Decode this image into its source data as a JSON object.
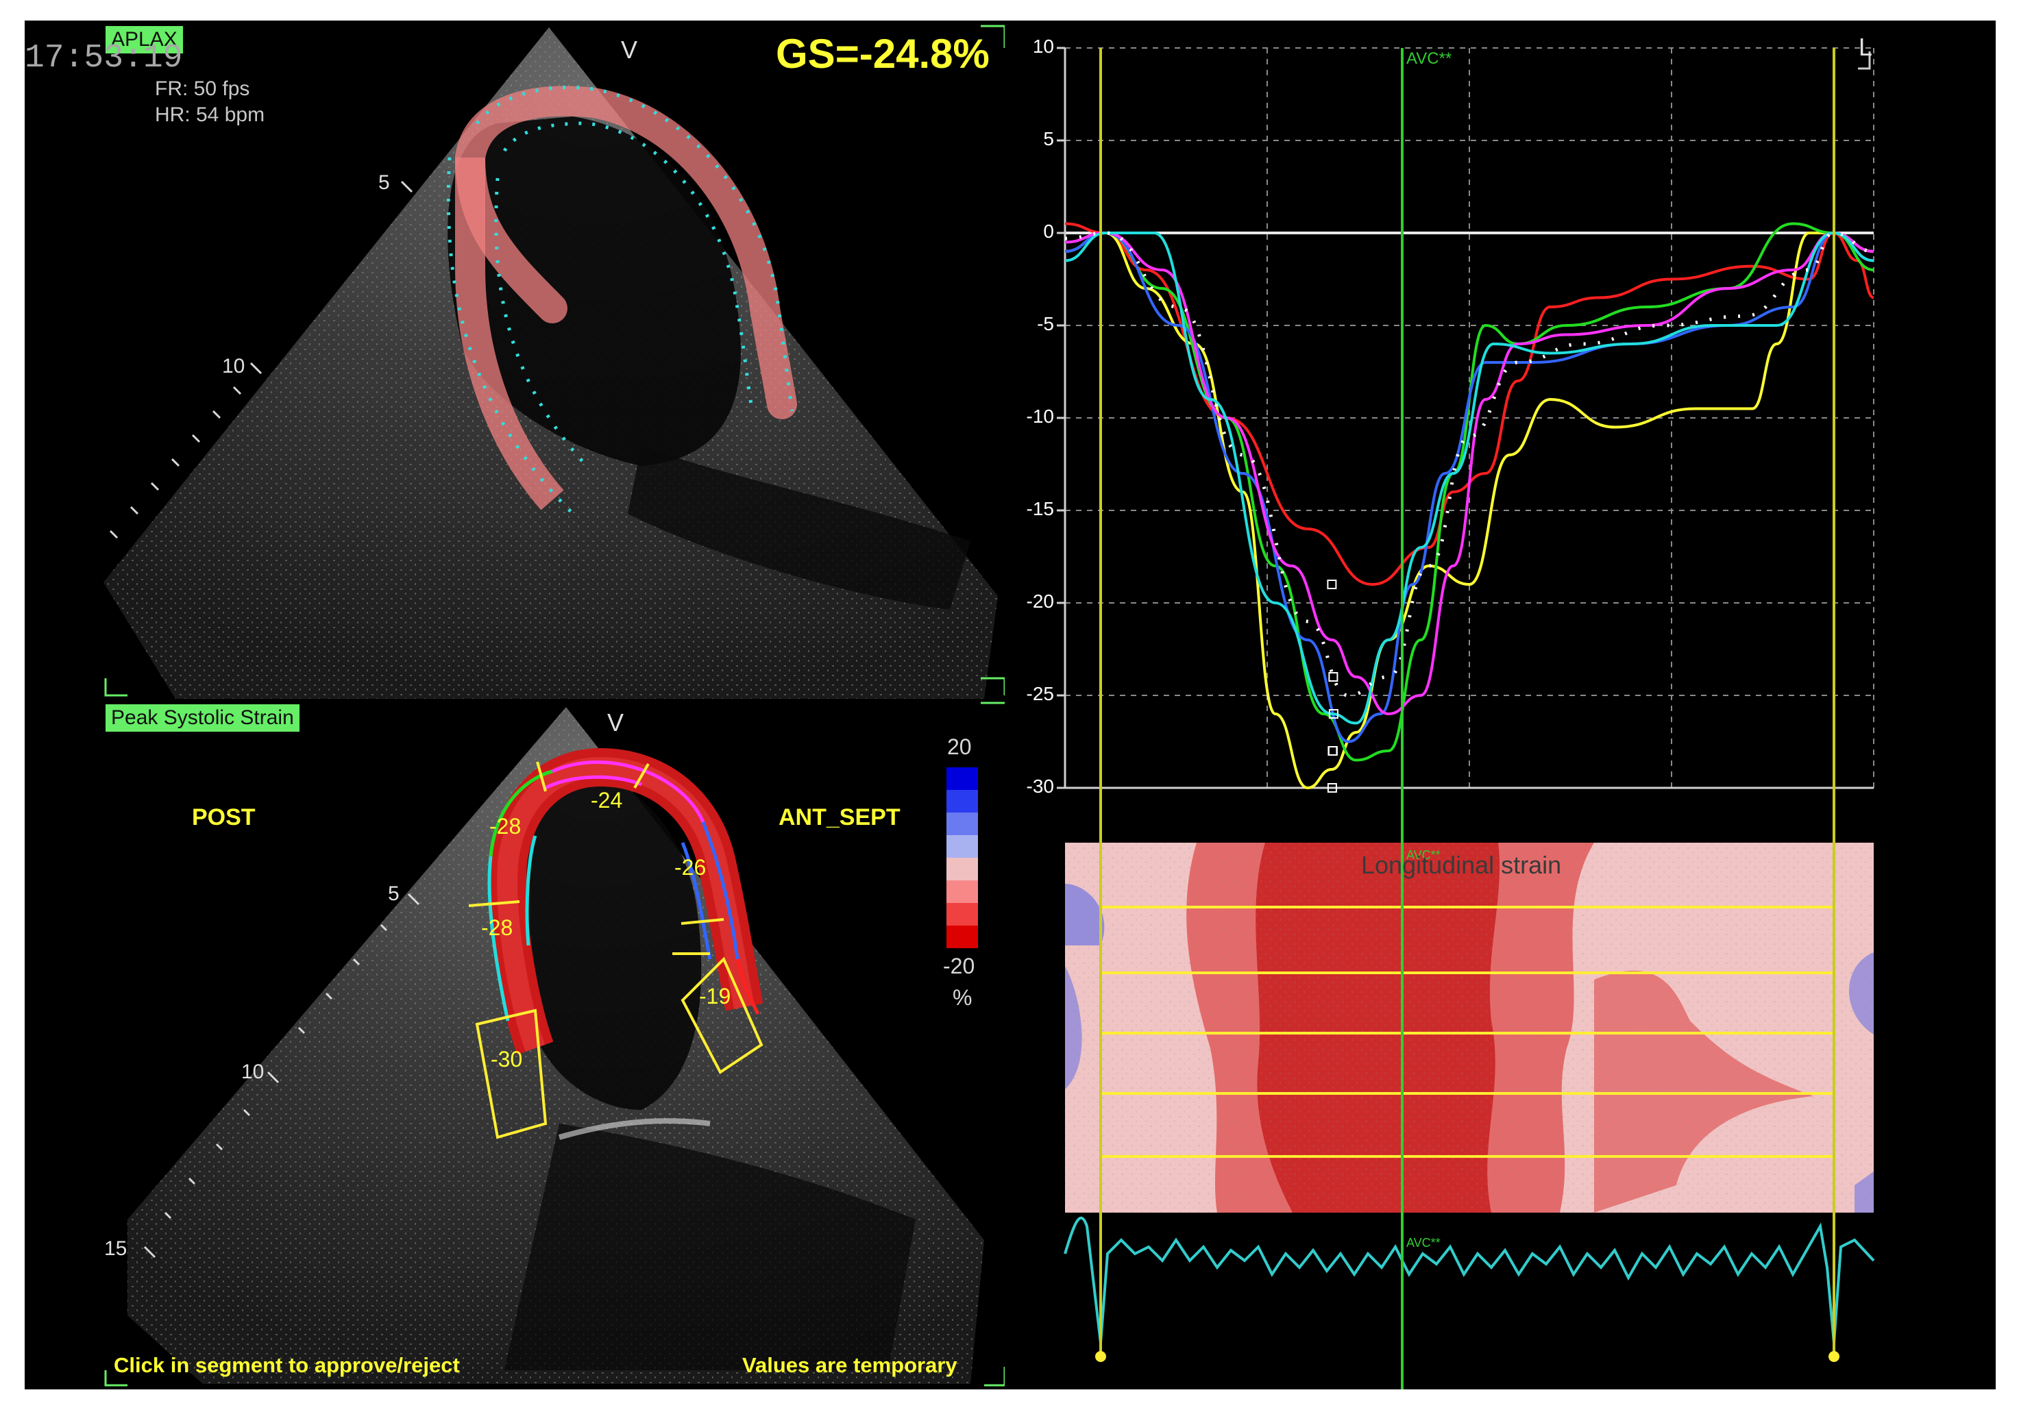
{
  "top_left": {
    "view_label": "APLAX",
    "time": "17:53:19",
    "frame_rate": "FR: 50 fps",
    "heart_rate": "HR: 54 bpm",
    "v_marker": "V",
    "gs_value": "GS=-24.8%",
    "depth_ticks": [
      "5",
      "10"
    ]
  },
  "bottom_left": {
    "mode_label": "Peak Systolic Strain",
    "v_marker": "V",
    "left_wall_label": "POST",
    "right_wall_label": "ANT_SEPT",
    "depth_ticks": [
      "5",
      "10",
      "15"
    ],
    "segment_values": [
      "-28",
      "-24",
      "-26",
      "-28",
      "-19",
      "-30"
    ],
    "colorbar": {
      "max": "20",
      "min": "-20",
      "unit": "%",
      "colors": [
        "#0000dd",
        "#2a3cf0",
        "#6a7af0",
        "#a8b2f0",
        "#f0c0c0",
        "#f88888",
        "#f04040",
        "#dd0000"
      ]
    },
    "footer_left": "Click in segment to approve/reject",
    "footer_right": "Values are temporary"
  },
  "strain_panel": {
    "corner_label": "L",
    "avc_label": "AVC**",
    "avc_label_lower": "AVC**",
    "y_tick_labels": [
      "10",
      "5",
      "0",
      "-5",
      "-10",
      "-15",
      "-20",
      "-25",
      "-30"
    ],
    "map_title": "Longitudinal strain"
  },
  "chart_data": {
    "type": "line",
    "ylim": [
      -30,
      10
    ],
    "y_ticks": [
      10,
      5,
      0,
      -5,
      -10,
      -15,
      -20,
      -25,
      -30
    ],
    "x_unit": "fraction of displayed cycle (not printed)",
    "markers": [
      "AVC**"
    ],
    "series": [
      {
        "color": "#ff2020",
        "peak": -19,
        "x": [
          0.0,
          0.05,
          0.1,
          0.2,
          0.3,
          0.38,
          0.45,
          0.48,
          0.52,
          0.56,
          0.6,
          0.66,
          0.75,
          0.85,
          0.92,
          0.95,
          0.98,
          1.0
        ],
        "values": [
          0.5,
          0,
          -2,
          -10,
          -16,
          -19,
          -17,
          -14,
          -13,
          -8,
          -4,
          -3.5,
          -2.5,
          -1.8,
          -2.5,
          0,
          -1.5,
          -3.5
        ]
      },
      {
        "color": "#ffff33",
        "peak": -30,
        "x": [
          0.0,
          0.05,
          0.1,
          0.16,
          0.22,
          0.26,
          0.3,
          0.33,
          0.36,
          0.4,
          0.45,
          0.5,
          0.55,
          0.6,
          0.68,
          0.78,
          0.85,
          0.88,
          0.92,
          0.95,
          1.0
        ],
        "values": [
          -1,
          0,
          -3,
          -6,
          -14,
          -26,
          -30,
          -29,
          -27,
          -22,
          -18,
          -19,
          -12,
          -9,
          -10.5,
          -9.5,
          -9.5,
          -6,
          0,
          0,
          -1
        ]
      },
      {
        "color": "#22dd22",
        "peak": -28,
        "x": [
          0.0,
          0.05,
          0.12,
          0.2,
          0.26,
          0.32,
          0.36,
          0.4,
          0.44,
          0.48,
          0.52,
          0.56,
          0.62,
          0.72,
          0.82,
          0.9,
          0.95,
          1.0
        ],
        "values": [
          -1,
          0,
          -3,
          -10,
          -18,
          -26,
          -28.5,
          -28,
          -22,
          -13,
          -5,
          -6,
          -5,
          -4,
          -3,
          0.5,
          0,
          -2
        ]
      },
      {
        "color": "#3366ff",
        "peak": -28,
        "x": [
          0.0,
          0.05,
          0.14,
          0.22,
          0.3,
          0.35,
          0.39,
          0.43,
          0.47,
          0.52,
          0.58,
          0.7,
          0.82,
          0.9,
          0.95,
          1.0
        ],
        "values": [
          -1,
          0,
          -5,
          -13,
          -22,
          -27.5,
          -26,
          -19,
          -13,
          -7,
          -7,
          -6,
          -5,
          -4,
          0,
          -1.5
        ]
      },
      {
        "color": "#ff33ff",
        "peak": -24,
        "x": [
          0.0,
          0.05,
          0.12,
          0.2,
          0.28,
          0.33,
          0.36,
          0.4,
          0.44,
          0.48,
          0.52,
          0.56,
          0.62,
          0.72,
          0.82,
          0.9,
          0.95,
          1.0
        ],
        "values": [
          -0.5,
          0,
          -2,
          -10,
          -18,
          -22,
          -24,
          -26,
          -25,
          -18,
          -9,
          -6,
          -5.5,
          -5,
          -3,
          -2,
          0,
          -1
        ]
      },
      {
        "color": "#22dddd",
        "peak": -26,
        "x": [
          0.0,
          0.05,
          0.11,
          0.18,
          0.26,
          0.33,
          0.36,
          0.4,
          0.44,
          0.48,
          0.53,
          0.6,
          0.7,
          0.8,
          0.88,
          0.95,
          1.0
        ],
        "values": [
          -1.5,
          0,
          0,
          -9,
          -20,
          -26,
          -26.5,
          -22,
          -17,
          -13,
          -6,
          -6.5,
          -6,
          -5,
          -5,
          0,
          -1.5
        ]
      },
      {
        "color": "#ffffff",
        "dashed": true,
        "x": [
          0.0,
          0.05,
          0.14,
          0.22,
          0.3,
          0.35,
          0.4,
          0.45,
          0.5,
          0.56,
          0.64,
          0.74,
          0.84,
          0.92,
          0.95,
          1.0
        ],
        "values": [
          -0.3,
          0,
          -4,
          -12,
          -21,
          -25,
          -24,
          -18,
          -11,
          -7,
          -6,
          -5,
          -4.5,
          -2,
          0,
          -1
        ]
      }
    ]
  }
}
